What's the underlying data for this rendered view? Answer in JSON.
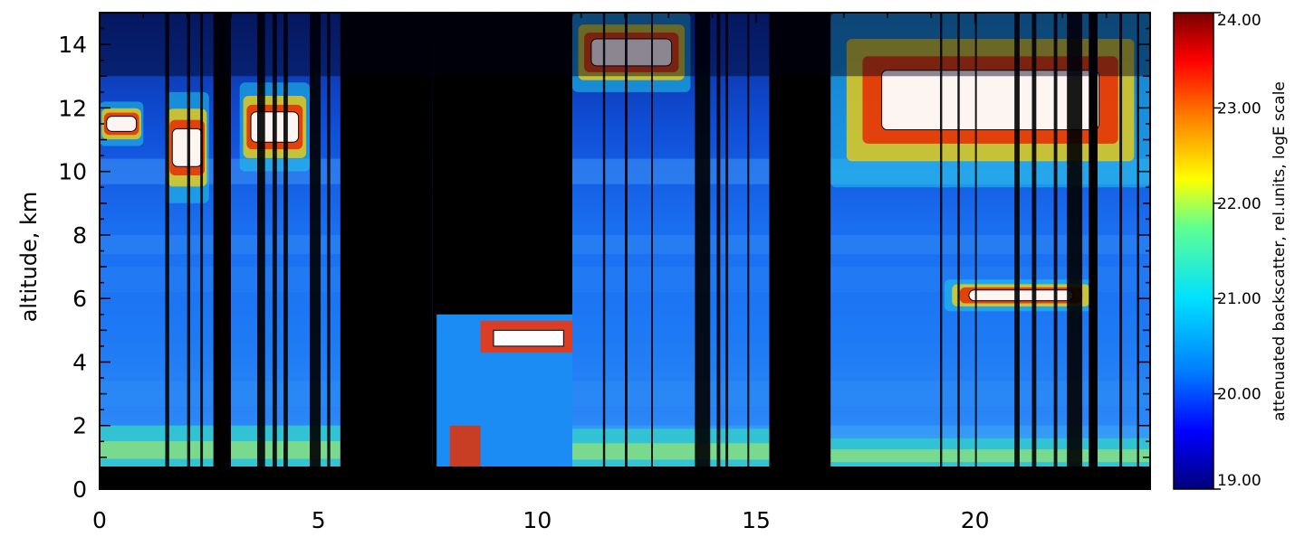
{
  "chart_data": {
    "type": "heatmap",
    "title": "",
    "xlabel": "",
    "ylabel": "altitude, km",
    "xlim": [
      0,
      24
    ],
    "ylim": [
      0,
      15
    ],
    "x_ticks": [
      0,
      5,
      10,
      15,
      20
    ],
    "y_ticks": [
      0,
      2,
      4,
      6,
      8,
      10,
      12,
      14
    ],
    "colorbar": {
      "title": "attenuated backscatter, rel.units, logE scale",
      "range": [
        19.0,
        24.0
      ],
      "ticks": [
        "24.00",
        "23.00",
        "22.00",
        "21.00",
        "20.00",
        "19.00"
      ],
      "tick_values": [
        24,
        23,
        22,
        21,
        20,
        19
      ],
      "colors": [
        "#00007a",
        "#0000ff",
        "#0080ff",
        "#00e0ff",
        "#60ff90",
        "#ffff00",
        "#ff8000",
        "#ff0000",
        "#7a0000"
      ]
    },
    "no_data_time_ranges": [
      [
        2.6,
        3.0
      ],
      [
        5.5,
        7.6
      ],
      [
        7.6,
        10.8
      ],
      [
        15.3,
        16.7
      ],
      [
        22.6,
        22.8
      ]
    ],
    "cloud_layers": [
      {
        "t_start": 0.0,
        "t_end": 1.0,
        "z_bottom": 10.8,
        "z_top": 12.2
      },
      {
        "t_start": 1.5,
        "t_end": 2.5,
        "z_bottom": 9.0,
        "z_top": 12.5
      },
      {
        "t_start": 3.2,
        "t_end": 4.8,
        "z_bottom": 10.0,
        "z_top": 12.8
      },
      {
        "t_start": 7.8,
        "t_end": 8.8,
        "z_bottom": 0.6,
        "z_top": 3.2
      },
      {
        "t_start": 8.8,
        "t_end": 10.8,
        "z_bottom": 3.5,
        "z_top": 6.0
      },
      {
        "t_start": 10.8,
        "t_end": 13.5,
        "z_bottom": 12.5,
        "z_top": 15.0
      },
      {
        "t_start": 16.7,
        "t_end": 24.0,
        "z_bottom": 9.5,
        "z_top": 15.0
      },
      {
        "t_start": 19.3,
        "t_end": 22.8,
        "z_bottom": 5.6,
        "z_top": 6.6
      },
      {
        "t_start": 0.0,
        "t_end": 5.5,
        "z_bottom": 0.6,
        "z_top": 2.0
      },
      {
        "t_start": 10.8,
        "t_end": 15.3,
        "z_bottom": 0.6,
        "z_top": 1.9
      },
      {
        "t_start": 16.7,
        "t_end": 24.0,
        "z_bottom": 0.6,
        "z_top": 1.6
      }
    ]
  }
}
